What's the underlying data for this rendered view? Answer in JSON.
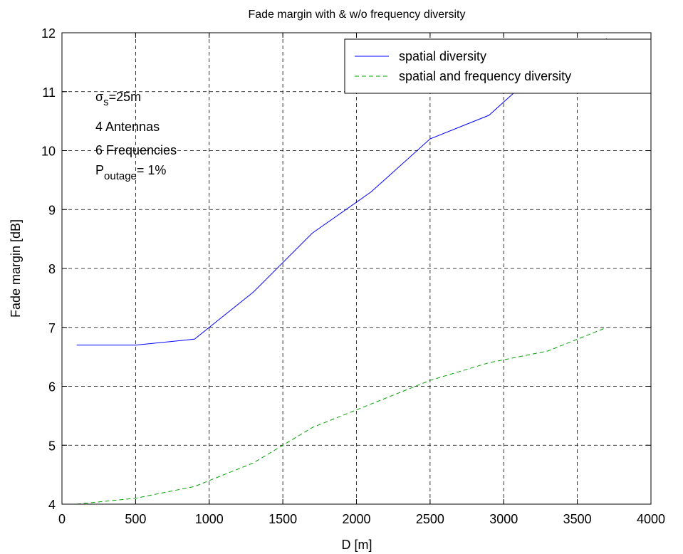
{
  "chart_data": {
    "type": "line",
    "title": "Fade margin with & w/o frequency diversity",
    "xlabel": "D [m]",
    "ylabel": "Fade margin [dB]",
    "xlim": [
      0,
      4000
    ],
    "ylim": [
      4,
      12
    ],
    "xticks": [
      0,
      500,
      1000,
      1500,
      2000,
      2500,
      3000,
      3500,
      4000
    ],
    "yticks": [
      4,
      5,
      6,
      7,
      8,
      9,
      10,
      11,
      12
    ],
    "grid": true,
    "legend_position": "top-right",
    "series": [
      {
        "name": "spatial diversity",
        "color": "#0000ff",
        "style": "solid",
        "x": [
          100,
          500,
          900,
          1300,
          1700,
          2100,
          2500,
          2900,
          3300,
          3700
        ],
        "y": [
          6.7,
          6.7,
          6.8,
          7.6,
          8.6,
          9.3,
          10.2,
          10.6,
          11.5,
          11.9
        ]
      },
      {
        "name": "spatial and frequency diversity",
        "color": "#00a000",
        "style": "dashed",
        "x": [
          100,
          500,
          900,
          1300,
          1700,
          2100,
          2500,
          2900,
          3300,
          3700
        ],
        "y": [
          4.0,
          4.1,
          4.3,
          4.7,
          5.3,
          5.7,
          6.1,
          6.4,
          6.6,
          7.0
        ]
      }
    ],
    "annotations": {
      "sigma_symbol": "σ",
      "sigma_sub": "s",
      "sigma_rest": "=25m",
      "antennas": "4 Antennas",
      "frequencies": "6 Frequencies",
      "p_symbol": "P",
      "p_sub": "outage",
      "p_rest": "= 1%"
    }
  }
}
